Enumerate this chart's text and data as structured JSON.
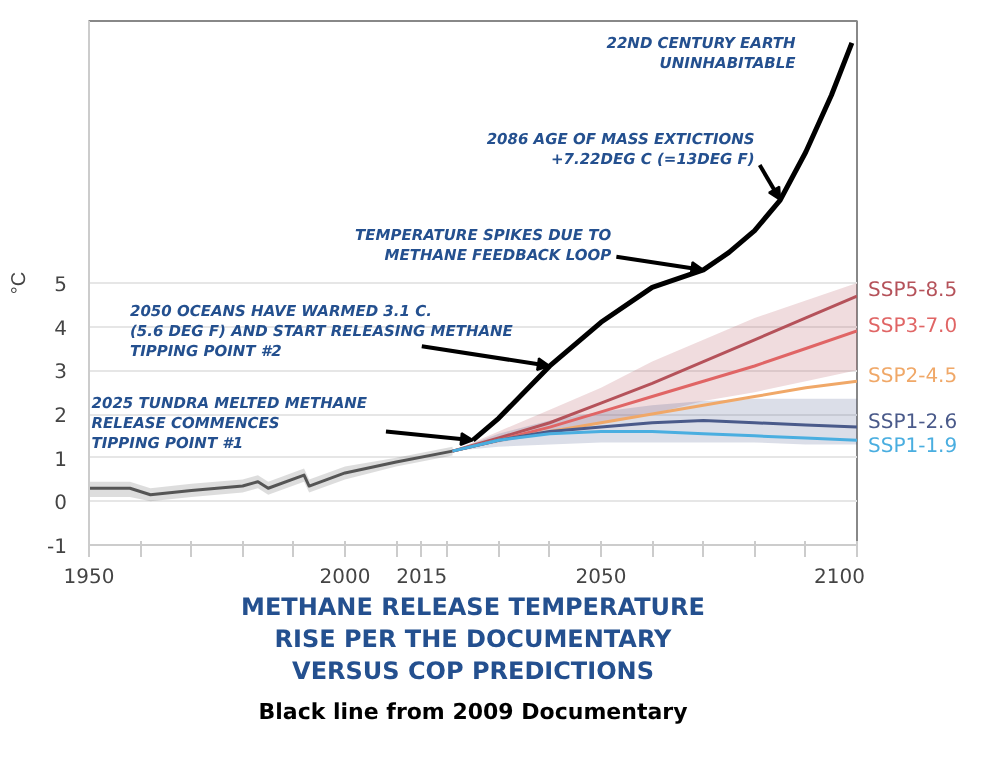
{
  "chart_data": {
    "type": "line",
    "title": "METHANE RELEASE TEMPERATURE\nRISE PER THE DOCUMENTARY\nVERSUS COP PREDICTIONS",
    "ylabel": "°C",
    "xlim": [
      1950,
      2100
    ],
    "ylim": [
      -1,
      11
    ],
    "xticks": [
      1950,
      {
        "value": 1960,
        "label": null
      },
      {
        "value": 1970,
        "label": null
      },
      {
        "value": 1980,
        "label": null
      },
      {
        "value": 1990,
        "label": null
      },
      2000,
      {
        "value": 2010,
        "label": null
      },
      2015,
      {
        "value": 2020,
        "label": null
      },
      {
        "value": 2030,
        "label": null
      },
      {
        "value": 2040,
        "label": null
      },
      2050,
      {
        "value": 2060,
        "label": null
      },
      {
        "value": 2070,
        "label": null
      },
      {
        "value": 2080,
        "label": null
      },
      {
        "value": 2090,
        "label": null
      },
      2100
    ],
    "yticks": [
      -1,
      0,
      1,
      2,
      3,
      4,
      5
    ],
    "grid": "y",
    "series": [
      {
        "color": "#555555",
        "x": [
          1950,
          1958,
          1962,
          1970,
          1980,
          1983,
          1985,
          1992,
          1993,
          2000,
          2010,
          2021
        ],
        "values": [
          0.3,
          0.3,
          0.15,
          0.25,
          0.35,
          0.45,
          0.3,
          0.6,
          0.35,
          0.65,
          0.9,
          1.15
        ],
        "lower": [
          0.1,
          0.1,
          0.0,
          0.1,
          0.2,
          0.3,
          0.15,
          0.45,
          0.2,
          0.5,
          0.8,
          1.05
        ],
        "upper": [
          0.45,
          0.45,
          0.3,
          0.4,
          0.5,
          0.6,
          0.45,
          0.75,
          0.5,
          0.8,
          1.0,
          1.25
        ]
      },
      {
        "name": "SSP5-8.5",
        "color": "#b5525a",
        "x": [
          2021,
          2030,
          2040,
          2050,
          2060,
          2070,
          2080,
          2090,
          2100
        ],
        "values": [
          1.15,
          1.45,
          1.8,
          2.25,
          2.7,
          3.2,
          3.7,
          4.2,
          4.7
        ],
        "lower": [
          1.15,
          1.35,
          1.55,
          1.8,
          2.0,
          2.3,
          2.5,
          2.75,
          3.0
        ],
        "upper": [
          1.15,
          1.6,
          2.1,
          2.6,
          3.2,
          3.7,
          4.2,
          4.6,
          5.0
        ]
      },
      {
        "name": "SSP3-7.0",
        "color": "#e06565",
        "x": [
          2021,
          2030,
          2040,
          2050,
          2060,
          2070,
          2080,
          2090,
          2100
        ],
        "values": [
          1.15,
          1.4,
          1.7,
          2.05,
          2.4,
          2.75,
          3.1,
          3.5,
          3.9
        ]
      },
      {
        "name": "SSP2-4.5",
        "color": "#f0a868",
        "x": [
          2021,
          2030,
          2040,
          2050,
          2060,
          2070,
          2080,
          2090,
          2100
        ],
        "values": [
          1.15,
          1.4,
          1.6,
          1.8,
          2.0,
          2.2,
          2.4,
          2.6,
          2.75
        ]
      },
      {
        "name": "SSP1-2.6",
        "color": "#4a5a8a",
        "x": [
          2021,
          2030,
          2040,
          2050,
          2060,
          2070,
          2080,
          2090,
          2100
        ],
        "values": [
          1.15,
          1.4,
          1.6,
          1.7,
          1.8,
          1.85,
          1.8,
          1.75,
          1.7
        ],
        "lower": [
          1.15,
          1.25,
          1.3,
          1.35,
          1.35,
          1.35,
          1.35,
          1.3,
          1.3
        ],
        "upper": [
          1.15,
          1.55,
          1.85,
          2.05,
          2.2,
          2.3,
          2.35,
          2.35,
          2.35
        ]
      },
      {
        "name": "SSP1-1.9",
        "color": "#4aaee0",
        "x": [
          2021,
          2030,
          2040,
          2050,
          2060,
          2070,
          2080,
          2090,
          2100
        ],
        "values": [
          1.15,
          1.4,
          1.55,
          1.6,
          1.6,
          1.55,
          1.5,
          1.45,
          1.4
        ]
      },
      {
        "color": "#000000",
        "x": [
          2025,
          2030,
          2040,
          2050,
          2060,
          2070,
          2075,
          2080,
          2085,
          2090,
          2095,
          2099
        ],
        "values": [
          1.4,
          1.9,
          3.1,
          4.1,
          4.9,
          5.3,
          5.7,
          6.2,
          6.9,
          8.0,
          9.3,
          10.5
        ]
      }
    ],
    "annotations": [
      "22ND CENTURY EARTH\nUNINHABITABLE",
      {
        "text": "2086 AGE OF MASS EXTICTIONS\n+7.22DEG C (=13DEG F)",
        "x": 2085,
        "y": 6.9
      },
      {
        "text": "TEMPERATURE SPIKES DUE TO\nMETHANE FEEDBACK LOOP",
        "x": 2070,
        "y": 5.3
      },
      {
        "text": "2050 OCEANS HAVE  WARMED 3.1 C.\n(5.6 DEG F) AND START RELEASING METHANE\nTIPPING POINT #2",
        "x": 2040,
        "y": 3.1
      },
      {
        "text": "2025 TUNDRA MELTED METHANE\nRELEASE COMMENCES\nTIPPING POINT #1",
        "x": 2025,
        "y": 1.4
      },
      "Black line from 2009 Documentary"
    ]
  }
}
